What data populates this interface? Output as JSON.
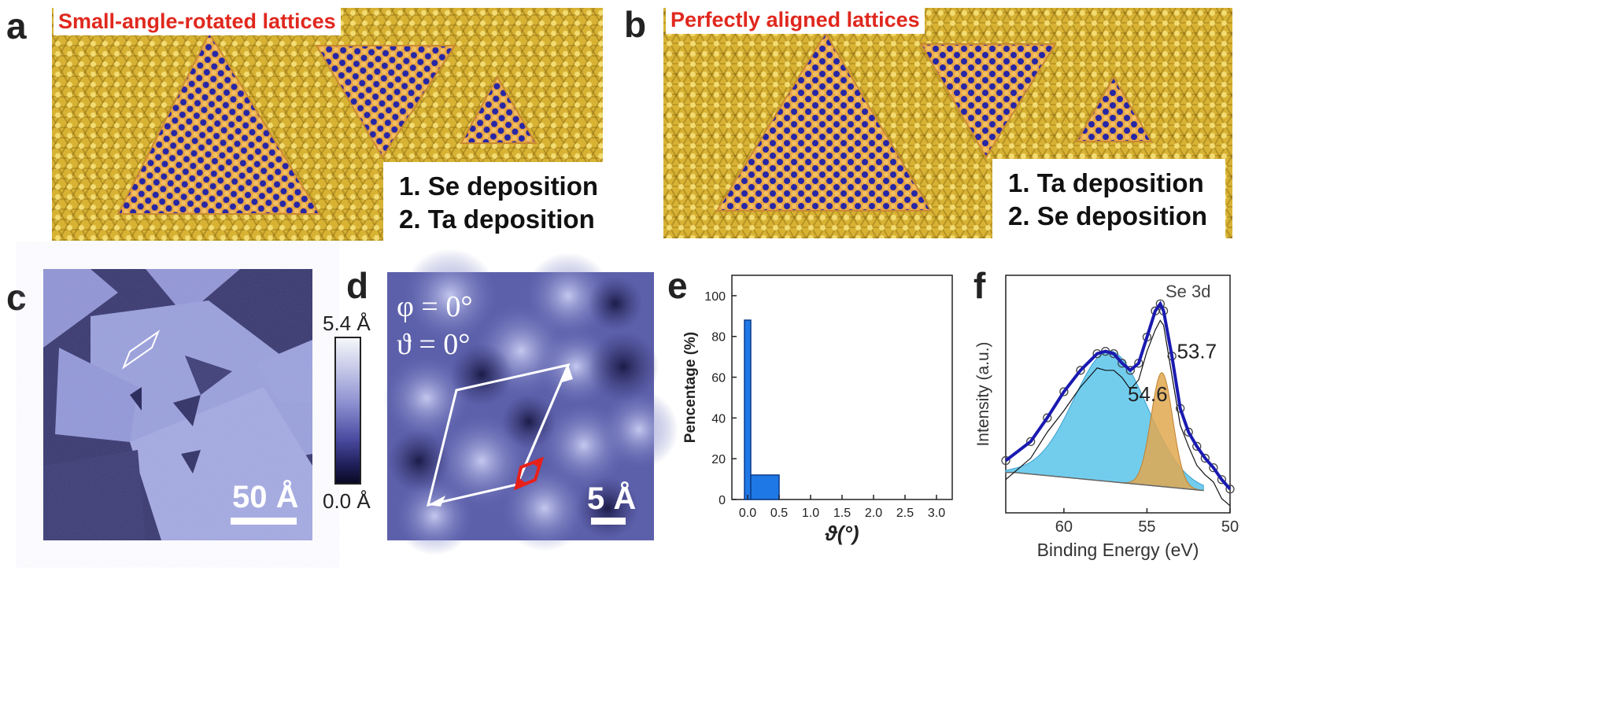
{
  "panels": {
    "a": {
      "label": "a",
      "title": "Small-angle-rotated lattices",
      "steps": [
        "1.  Se deposition",
        "2.  Ta deposition"
      ]
    },
    "b": {
      "label": "b",
      "title": "Perfectly aligned lattices",
      "steps": [
        "1.  Ta deposition",
        "2.  Se deposition"
      ]
    },
    "c": {
      "label": "c",
      "scalebar": "50 Å",
      "colorbar_max": "5.4 Å",
      "colorbar_min": "0.0 Å"
    },
    "d": {
      "label": "d",
      "phi_text": "φ = 0°",
      "theta_text": "ϑ = 0°",
      "scalebar": "5 Å"
    },
    "e": {
      "label": "e"
    },
    "f": {
      "label": "f"
    }
  },
  "colors": {
    "lattice_gold": "#d8b233",
    "atom_blue": "#2a2aa8",
    "atom_orange": "#e8a040",
    "title_red": "#e0281e",
    "stm_dark": "#303060",
    "stm_light": "#aab0e0",
    "bar_blue": "#1e78e6",
    "xps_fit_blue": "#1a1ab0",
    "xps_peak_cyan": "#59c4ea",
    "xps_peak_orange": "#e0a850"
  },
  "chart_data": [
    {
      "type": "bar",
      "xlabel": "ϑ(°)",
      "ylabel": "Pencentage (%)",
      "xlim": [
        -0.25,
        3.25
      ],
      "ylim": [
        0,
        110
      ],
      "xticks": [
        "0.0",
        "0.5",
        "1.0",
        "1.5",
        "2.0",
        "2.5",
        "3.0"
      ],
      "yticks": [
        "0",
        "20",
        "40",
        "60",
        "80",
        "100"
      ],
      "bins": [
        {
          "x0": -0.05,
          "x1": 0.05,
          "value": 88
        },
        {
          "x0": 0.05,
          "x1": 0.5,
          "value": 12
        }
      ]
    },
    {
      "type": "line",
      "title": "Se 3d",
      "xlabel": "Binding Energy (eV)",
      "ylabel": "Intensity (a.u.)",
      "xlim": [
        63.5,
        50
      ],
      "xticks": [
        "60",
        "55",
        "50"
      ],
      "peak_labels": [
        "54.6",
        "53.7"
      ],
      "series": [
        {
          "name": "",
          "x": [
            63.5,
            62,
            61,
            60,
            59,
            58,
            57.5,
            57,
            56.5,
            56,
            55.5,
            55,
            54.5,
            54.2,
            54,
            53.5,
            53,
            52.5,
            52,
            51.5,
            51,
            50.5,
            50
          ],
          "y": [
            0.22,
            0.3,
            0.4,
            0.51,
            0.6,
            0.67,
            0.68,
            0.67,
            0.63,
            0.6,
            0.63,
            0.74,
            0.85,
            0.88,
            0.85,
            0.66,
            0.44,
            0.34,
            0.28,
            0.23,
            0.19,
            0.14,
            0.1
          ]
        }
      ]
    }
  ]
}
